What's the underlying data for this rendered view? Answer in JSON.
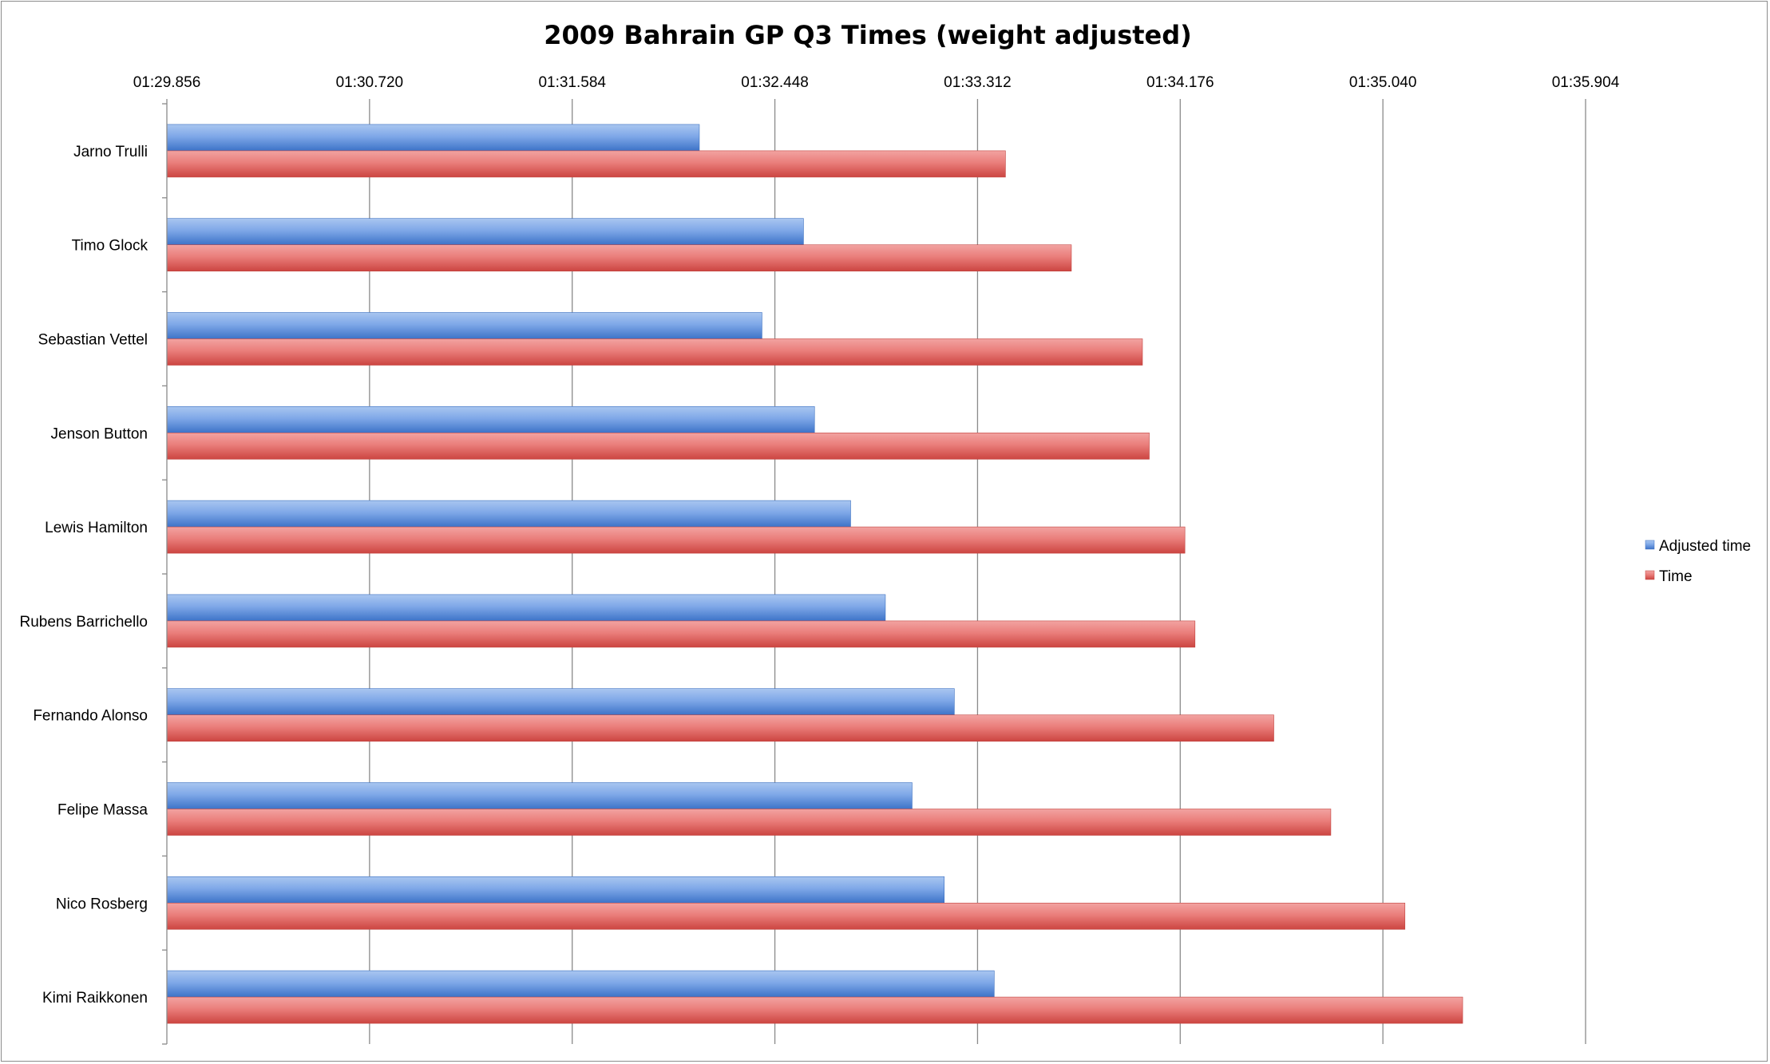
{
  "chart_data": {
    "type": "bar",
    "orientation": "horizontal",
    "title": "2009 Bahrain GP Q3 Times (weight adjusted)",
    "x_tick_labels": [
      "01:29.856",
      "01:30.720",
      "01:31.584",
      "01:32.448",
      "01:33.312",
      "01:34.176",
      "01:35.040",
      "01:35.904"
    ],
    "x_ticks": [
      89.856,
      90.72,
      91.584,
      92.448,
      93.312,
      94.176,
      95.04,
      95.904
    ],
    "xlim": [
      89.856,
      95.904
    ],
    "x_axis_position": "top",
    "grid": "vertical",
    "categories": [
      "Jarno Trulli",
      "Timo Glock",
      "Sebastian Vettel",
      "Jenson Button",
      "Lewis Hamilton",
      "Rubens Barrichello",
      "Fernando Alonso",
      "Felipe Massa",
      "Nico Rosberg",
      "Kimi Raikkonen"
    ],
    "series": [
      {
        "name": "Adjusted time",
        "color": "#4f81bd",
        "values": [
          92.126,
          92.57,
          92.393,
          92.617,
          92.771,
          92.919,
          93.213,
          93.033,
          93.17,
          93.383
        ]
      },
      {
        "name": "Time",
        "color": "#c0504d",
        "values": [
          93.431,
          93.712,
          94.015,
          94.044,
          94.196,
          94.239,
          94.575,
          94.818,
          95.134,
          95.38
        ]
      }
    ],
    "legend_position": "right"
  }
}
